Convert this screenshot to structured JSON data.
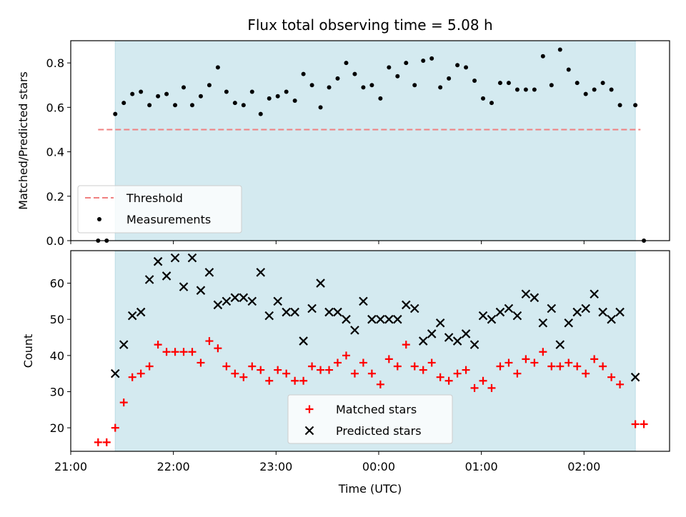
{
  "chart_data": [
    {
      "type": "scatter",
      "title": "Flux total observing time = 5.08 h",
      "xlabel": "",
      "ylabel": "Matched/Predicted stars",
      "ylim": [
        0,
        0.9
      ],
      "xlim": [
        "21:00",
        "02:50"
      ],
      "yticks": [
        "0.0",
        "0.2",
        "0.4",
        "0.6",
        "0.8"
      ],
      "observing_window": {
        "start": "21:26",
        "end": "02:30",
        "color": "#d4eaf0"
      },
      "threshold": {
        "name": "Threshold",
        "value": 0.5,
        "x_start": "21:16",
        "x_end": "02:33",
        "color": "#f08080"
      },
      "legend": {
        "placement": "lower-left",
        "entries": [
          "Threshold",
          "Measurements"
        ]
      },
      "series": [
        {
          "name": "Measurements",
          "color": "#000000",
          "marker": "dot",
          "points": [
            [
              "21:16",
              0.0
            ],
            [
              "21:21",
              0.0
            ],
            [
              "21:26",
              0.57
            ],
            [
              "21:31",
              0.62
            ],
            [
              "21:36",
              0.66
            ],
            [
              "21:41",
              0.67
            ],
            [
              "21:46",
              0.61
            ],
            [
              "21:51",
              0.65
            ],
            [
              "21:56",
              0.66
            ],
            [
              "22:01",
              0.61
            ],
            [
              "22:06",
              0.69
            ],
            [
              "22:11",
              0.61
            ],
            [
              "22:16",
              0.65
            ],
            [
              "22:21",
              0.7
            ],
            [
              "22:26",
              0.78
            ],
            [
              "22:31",
              0.67
            ],
            [
              "22:36",
              0.62
            ],
            [
              "22:41",
              0.61
            ],
            [
              "22:46",
              0.67
            ],
            [
              "22:51",
              0.57
            ],
            [
              "22:56",
              0.64
            ],
            [
              "23:01",
              0.65
            ],
            [
              "23:06",
              0.67
            ],
            [
              "23:11",
              0.63
            ],
            [
              "23:16",
              0.75
            ],
            [
              "23:21",
              0.7
            ],
            [
              "23:26",
              0.6
            ],
            [
              "23:31",
              0.69
            ],
            [
              "23:36",
              0.73
            ],
            [
              "23:41",
              0.8
            ],
            [
              "23:46",
              0.75
            ],
            [
              "23:51",
              0.69
            ],
            [
              "23:56",
              0.7
            ],
            [
              "00:01",
              0.64
            ],
            [
              "00:06",
              0.78
            ],
            [
              "00:11",
              0.74
            ],
            [
              "00:16",
              0.8
            ],
            [
              "00:21",
              0.7
            ],
            [
              "00:26",
              0.81
            ],
            [
              "00:31",
              0.82
            ],
            [
              "00:36",
              0.69
            ],
            [
              "00:41",
              0.73
            ],
            [
              "00:46",
              0.79
            ],
            [
              "00:51",
              0.78
            ],
            [
              "00:56",
              0.72
            ],
            [
              "01:01",
              0.64
            ],
            [
              "01:06",
              0.62
            ],
            [
              "01:11",
              0.71
            ],
            [
              "01:16",
              0.71
            ],
            [
              "01:21",
              0.68
            ],
            [
              "01:26",
              0.68
            ],
            [
              "01:31",
              0.68
            ],
            [
              "01:36",
              0.83
            ],
            [
              "01:41",
              0.7
            ],
            [
              "01:46",
              0.86
            ],
            [
              "01:51",
              0.77
            ],
            [
              "01:56",
              0.71
            ],
            [
              "02:01",
              0.66
            ],
            [
              "02:06",
              0.68
            ],
            [
              "02:11",
              0.71
            ],
            [
              "02:16",
              0.68
            ],
            [
              "02:21",
              0.61
            ],
            [
              "02:30",
              0.61
            ],
            [
              "02:35",
              0.0
            ]
          ]
        }
      ]
    },
    {
      "type": "scatter",
      "title": "",
      "xlabel": "Time (UTC)",
      "ylabel": "Count",
      "ylim": [
        13.5,
        69
      ],
      "xlim": [
        "21:00",
        "02:50"
      ],
      "xticks": [
        "21:00",
        "22:00",
        "23:00",
        "00:00",
        "01:00",
        "02:00"
      ],
      "yticks": [
        "20",
        "30",
        "40",
        "50",
        "60"
      ],
      "observing_window": {
        "start": "21:26",
        "end": "02:30",
        "color": "#d4eaf0"
      },
      "legend": {
        "placement": "lower-center",
        "entries": [
          "Matched stars",
          "Predicted stars"
        ]
      },
      "series": [
        {
          "name": "Matched stars",
          "color": "#ff0000",
          "marker": "plus",
          "points": [
            [
              "21:16",
              16
            ],
            [
              "21:21",
              16
            ],
            [
              "21:26",
              20
            ],
            [
              "21:31",
              27
            ],
            [
              "21:36",
              34
            ],
            [
              "21:41",
              35
            ],
            [
              "21:46",
              37
            ],
            [
              "21:51",
              43
            ],
            [
              "21:56",
              41
            ],
            [
              "22:01",
              41
            ],
            [
              "22:06",
              41
            ],
            [
              "22:11",
              41
            ],
            [
              "22:16",
              38
            ],
            [
              "22:21",
              44
            ],
            [
              "22:26",
              42
            ],
            [
              "22:31",
              37
            ],
            [
              "22:36",
              35
            ],
            [
              "22:41",
              34
            ],
            [
              "22:46",
              37
            ],
            [
              "22:51",
              36
            ],
            [
              "22:56",
              33
            ],
            [
              "23:01",
              36
            ],
            [
              "23:06",
              35
            ],
            [
              "23:11",
              33
            ],
            [
              "23:16",
              33
            ],
            [
              "23:21",
              37
            ],
            [
              "23:26",
              36
            ],
            [
              "23:31",
              36
            ],
            [
              "23:36",
              38
            ],
            [
              "23:41",
              40
            ],
            [
              "23:46",
              35
            ],
            [
              "23:51",
              38
            ],
            [
              "23:56",
              35
            ],
            [
              "00:01",
              32
            ],
            [
              "00:06",
              39
            ],
            [
              "00:11",
              37
            ],
            [
              "00:16",
              43
            ],
            [
              "00:21",
              37
            ],
            [
              "00:26",
              36
            ],
            [
              "00:31",
              38
            ],
            [
              "00:36",
              34
            ],
            [
              "00:41",
              33
            ],
            [
              "00:46",
              35
            ],
            [
              "00:51",
              36
            ],
            [
              "00:56",
              31
            ],
            [
              "01:01",
              33
            ],
            [
              "01:06",
              31
            ],
            [
              "01:11",
              37
            ],
            [
              "01:16",
              38
            ],
            [
              "01:21",
              35
            ],
            [
              "01:26",
              39
            ],
            [
              "01:31",
              38
            ],
            [
              "01:36",
              41
            ],
            [
              "01:41",
              37
            ],
            [
              "01:46",
              37
            ],
            [
              "01:51",
              38
            ],
            [
              "01:56",
              37
            ],
            [
              "02:01",
              35
            ],
            [
              "02:06",
              39
            ],
            [
              "02:11",
              37
            ],
            [
              "02:16",
              34
            ],
            [
              "02:21",
              32
            ],
            [
              "02:30",
              21
            ],
            [
              "02:35",
              21
            ]
          ]
        },
        {
          "name": "Predicted stars",
          "color": "#000000",
          "marker": "x",
          "points": [
            [
              "21:26",
              35
            ],
            [
              "21:31",
              43
            ],
            [
              "21:36",
              51
            ],
            [
              "21:41",
              52
            ],
            [
              "21:46",
              61
            ],
            [
              "21:51",
              66
            ],
            [
              "21:56",
              62
            ],
            [
              "22:01",
              67
            ],
            [
              "22:06",
              59
            ],
            [
              "22:11",
              67
            ],
            [
              "22:16",
              58
            ],
            [
              "22:21",
              63
            ],
            [
              "22:26",
              54
            ],
            [
              "22:31",
              55
            ],
            [
              "22:36",
              56
            ],
            [
              "22:41",
              56
            ],
            [
              "22:46",
              55
            ],
            [
              "22:51",
              63
            ],
            [
              "22:56",
              51
            ],
            [
              "23:01",
              55
            ],
            [
              "23:06",
              52
            ],
            [
              "23:11",
              52
            ],
            [
              "23:16",
              44
            ],
            [
              "23:21",
              53
            ],
            [
              "23:26",
              60
            ],
            [
              "23:31",
              52
            ],
            [
              "23:36",
              52
            ],
            [
              "23:41",
              50
            ],
            [
              "23:46",
              47
            ],
            [
              "23:51",
              55
            ],
            [
              "23:56",
              50
            ],
            [
              "00:01",
              50
            ],
            [
              "00:06",
              50
            ],
            [
              "00:11",
              50
            ],
            [
              "00:16",
              54
            ],
            [
              "00:21",
              53
            ],
            [
              "00:26",
              44
            ],
            [
              "00:31",
              46
            ],
            [
              "00:36",
              49
            ],
            [
              "00:41",
              45
            ],
            [
              "00:46",
              44
            ],
            [
              "00:51",
              46
            ],
            [
              "00:56",
              43
            ],
            [
              "01:01",
              51
            ],
            [
              "01:06",
              50
            ],
            [
              "01:11",
              52
            ],
            [
              "01:16",
              53
            ],
            [
              "01:21",
              51
            ],
            [
              "01:26",
              57
            ],
            [
              "01:31",
              56
            ],
            [
              "01:36",
              49
            ],
            [
              "01:41",
              53
            ],
            [
              "01:46",
              43
            ],
            [
              "01:51",
              49
            ],
            [
              "01:56",
              52
            ],
            [
              "02:01",
              53
            ],
            [
              "02:06",
              57
            ],
            [
              "02:11",
              52
            ],
            [
              "02:16",
              50
            ],
            [
              "02:21",
              52
            ],
            [
              "02:30",
              34
            ]
          ]
        }
      ]
    }
  ]
}
